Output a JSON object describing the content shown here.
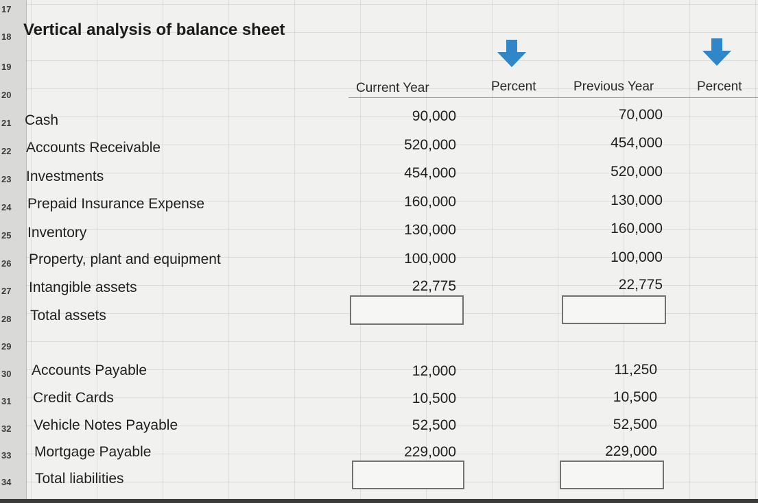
{
  "title": "Vertical analysis of balance sheet",
  "row_numbers": [
    "17",
    "18",
    "19",
    "20",
    "21",
    "22",
    "23",
    "24",
    "25",
    "26",
    "27",
    "28",
    "29",
    "30",
    "31",
    "32",
    "33",
    "34"
  ],
  "headers": {
    "current_year": "Current Year",
    "percent_1": "Percent",
    "previous_year": "Previous Year",
    "percent_2": "Percent"
  },
  "assets": [
    {
      "label": "Cash",
      "current": "90,000",
      "previous": "70,000"
    },
    {
      "label": "Accounts Receivable",
      "current": "520,000",
      "previous": "454,000"
    },
    {
      "label": "Investments",
      "current": "454,000",
      "previous": "520,000"
    },
    {
      "label": "Prepaid Insurance Expense",
      "current": "160,000",
      "previous": "130,000"
    },
    {
      "label": "Inventory",
      "current": "130,000",
      "previous": "160,000"
    },
    {
      "label": "Property, plant and equipment",
      "current": "100,000",
      "previous": "100,000"
    },
    {
      "label": "Intangible assets",
      "current": "22,775",
      "previous": "22,775"
    }
  ],
  "total_assets_label": "Total assets",
  "liabilities": [
    {
      "label": "Accounts Payable",
      "current": "12,000",
      "previous": "11,250"
    },
    {
      "label": "Credit Cards",
      "current": "10,500",
      "previous": "10,500"
    },
    {
      "label": "Vehicle Notes Payable",
      "current": "52,500",
      "previous": "52,500"
    },
    {
      "label": "Mortgage Payable",
      "current": "229,000",
      "previous": "229,000"
    }
  ],
  "total_liabilities_label": "Total liabilities",
  "icons": {
    "percent_arrow": "arrow-down-icon"
  },
  "colors": {
    "arrow": "#2f86c9"
  }
}
